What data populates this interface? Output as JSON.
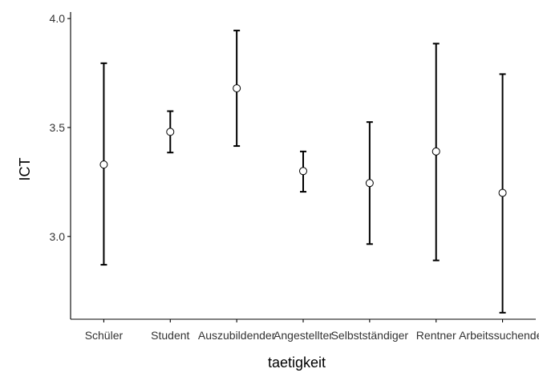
{
  "chart_data": {
    "type": "errorbar",
    "xlabel": "taetigkeit",
    "ylabel": "ICT",
    "ylim": [
      2.62,
      4.03
    ],
    "yticks": [
      "3.0",
      "3.5",
      "4.0"
    ],
    "grid": false,
    "categories": [
      "Schüler",
      "Student",
      "Auszubildender",
      "Angestellter",
      "Selbstständiger",
      "Rentner",
      "Arbeitssuchender"
    ],
    "means": [
      3.33,
      3.48,
      3.68,
      3.3,
      3.245,
      3.39,
      3.2
    ],
    "lower": [
      2.87,
      3.385,
      3.415,
      3.205,
      2.965,
      2.89,
      2.65
    ],
    "upper": [
      3.795,
      3.575,
      3.945,
      3.39,
      3.525,
      3.885,
      3.745
    ]
  }
}
